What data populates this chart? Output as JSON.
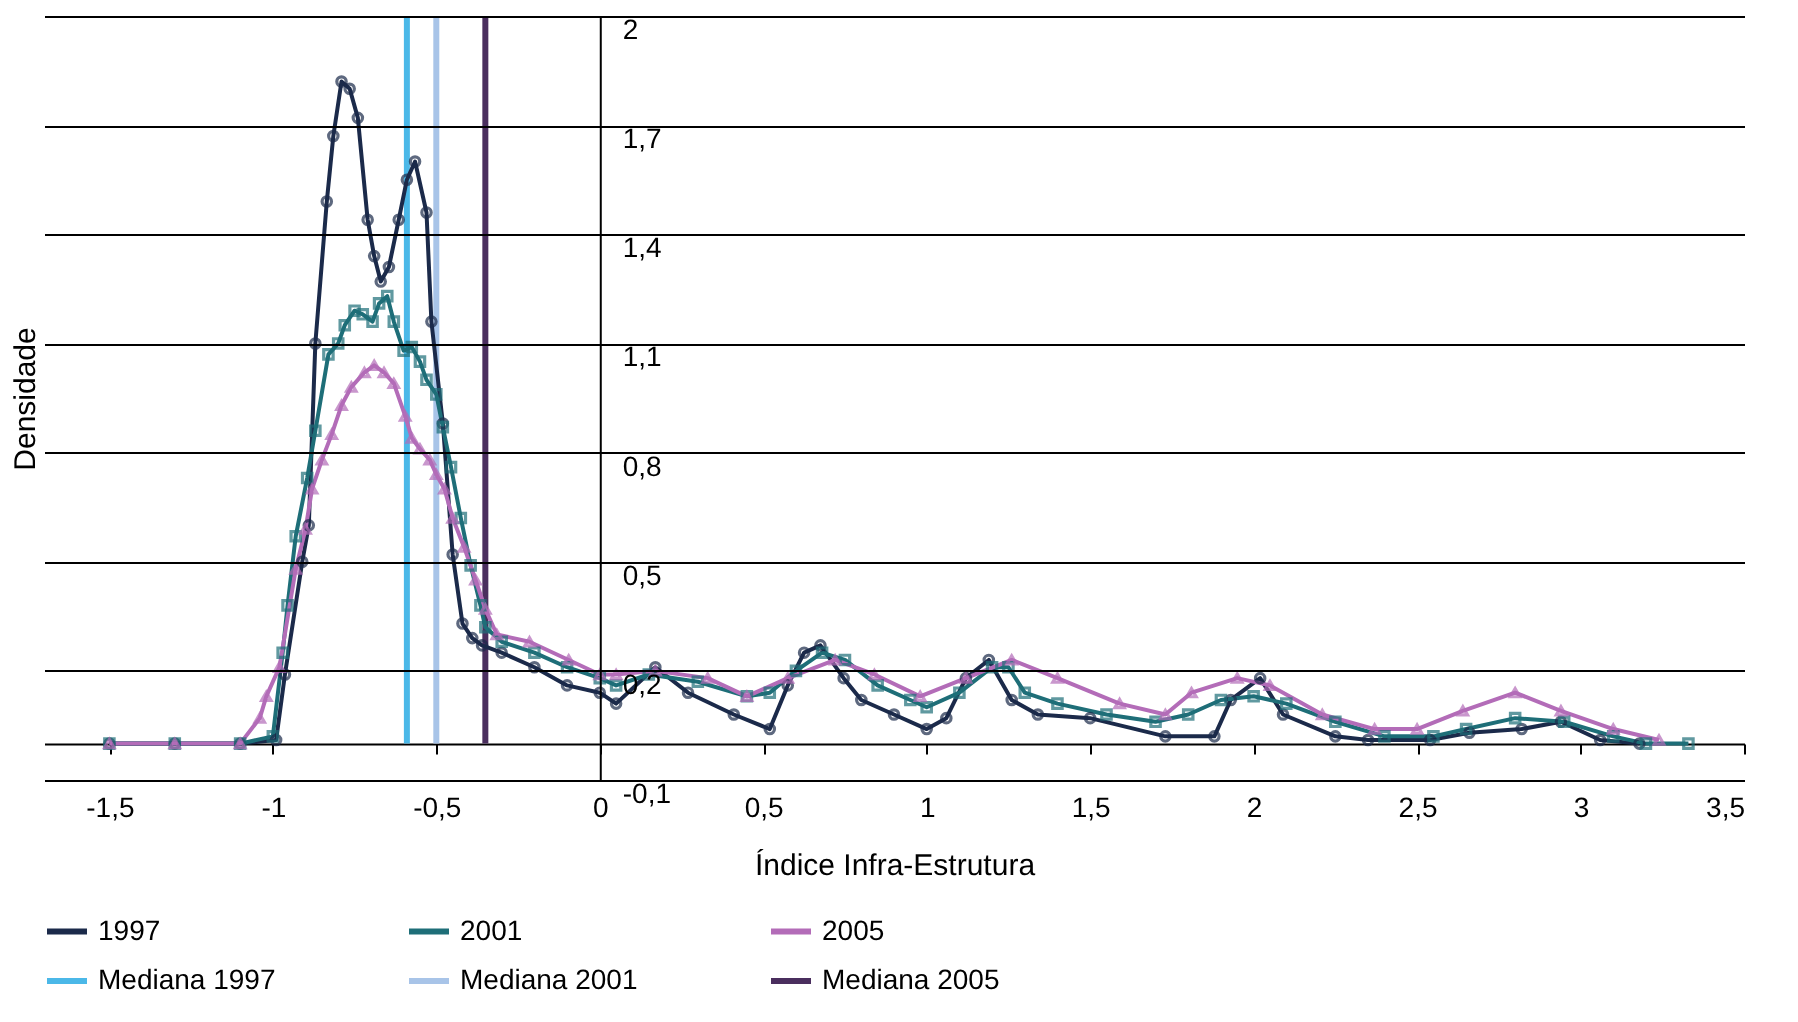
{
  "chart_data": {
    "type": "line",
    "xlabel": "Índice Infra-Estrutura",
    "ylabel": "Densidade",
    "xlim": [
      -1.7,
      3.5
    ],
    "xticks": [
      {
        "value": -1.5,
        "label": "-1,5"
      },
      -1,
      {
        "value": -0.5,
        "label": "-0,5"
      },
      0,
      {
        "value": 0.5,
        "label": "0,5"
      },
      1,
      {
        "value": 1.5,
        "label": "1,5"
      },
      2,
      {
        "value": 2.5,
        "label": "2,5"
      },
      3,
      {
        "value": 3.5,
        "label": "3,5"
      }
    ],
    "ylim": [
      -0.1,
      2
    ],
    "yticks": [
      {
        "value": -0.1,
        "label": "-0,1"
      },
      {
        "value": 0.2,
        "label": "0,2"
      },
      {
        "value": 0.5,
        "label": "0,5"
      },
      {
        "value": 0.8,
        "label": "0,8"
      },
      {
        "value": 1.1,
        "label": "1,1"
      },
      {
        "value": 1.4,
        "label": "1,4"
      },
      {
        "value": 1.7,
        "label": "1,7"
      },
      2
    ],
    "grid": "y",
    "legend": "bottom",
    "line_style": "solid",
    "series": [
      {
        "name": "1997",
        "color": "#1b2a4a",
        "marker": "circle",
        "x": [
          -1.5,
          -1.3,
          -1.1,
          -0.99,
          -0.963,
          -0.91,
          -0.89,
          -0.87,
          -0.835,
          -0.815,
          -0.79,
          -0.765,
          -0.74,
          -0.71,
          -0.69,
          -0.67,
          -0.645,
          -0.615,
          -0.59,
          -0.565,
          -0.53,
          -0.515,
          -0.48,
          -0.45,
          -0.42,
          -0.39,
          -0.36,
          -0.3,
          -0.2,
          -0.1,
          0,
          0.05,
          0.17,
          0.27,
          0.41,
          0.52,
          0.575,
          0.625,
          0.675,
          0.746,
          0.8,
          0.9,
          1.0,
          1.06,
          1.12,
          1.19,
          1.26,
          1.34,
          1.5,
          1.73,
          1.88,
          1.93,
          2.02,
          2.09,
          2.25,
          2.35,
          2.54,
          2.66,
          2.82,
          2.94,
          3.06,
          3.18
        ],
        "values": [
          0,
          0,
          0,
          0.01,
          0.19,
          0.5,
          0.6,
          1.1,
          1.49,
          1.67,
          1.82,
          1.8,
          1.72,
          1.44,
          1.34,
          1.27,
          1.31,
          1.44,
          1.55,
          1.6,
          1.46,
          1.16,
          0.88,
          0.52,
          0.33,
          0.29,
          0.27,
          0.25,
          0.21,
          0.16,
          0.14,
          0.11,
          0.21,
          0.14,
          0.08,
          0.04,
          0.16,
          0.25,
          0.27,
          0.18,
          0.12,
          0.08,
          0.04,
          0.07,
          0.18,
          0.23,
          0.12,
          0.08,
          0.07,
          0.02,
          0.02,
          0.12,
          0.18,
          0.08,
          0.02,
          0.01,
          0.01,
          0.03,
          0.04,
          0.06,
          0.01,
          0
        ]
      },
      {
        "name": "2001",
        "color": "#1e6e78",
        "marker": "square",
        "x": [
          -1.5,
          -1.3,
          -1.1,
          -1.0,
          -0.97,
          -0.955,
          -0.93,
          -0.895,
          -0.87,
          -0.83,
          -0.8,
          -0.78,
          -0.75,
          -0.725,
          -0.695,
          -0.675,
          -0.65,
          -0.63,
          -0.6,
          -0.575,
          -0.55,
          -0.53,
          -0.5,
          -0.48,
          -0.455,
          -0.425,
          -0.395,
          -0.365,
          -0.35,
          -0.3,
          -0.2,
          -0.1,
          0,
          0.05,
          0.15,
          0.3,
          0.45,
          0.52,
          0.6,
          0.68,
          0.75,
          0.85,
          0.95,
          1.0,
          1.1,
          1.2,
          1.25,
          1.3,
          1.4,
          1.55,
          1.7,
          1.8,
          1.9,
          2.0,
          2.1,
          2.25,
          2.4,
          2.55,
          2.65,
          2.8,
          2.95,
          3.1,
          3.2,
          3.33
        ],
        "values": [
          0,
          0,
          0,
          0.02,
          0.25,
          0.38,
          0.57,
          0.73,
          0.86,
          1.07,
          1.1,
          1.15,
          1.19,
          1.18,
          1.16,
          1.21,
          1.23,
          1.16,
          1.08,
          1.09,
          1.05,
          1.0,
          0.96,
          0.87,
          0.76,
          0.62,
          0.49,
          0.38,
          0.32,
          0.28,
          0.25,
          0.21,
          0.18,
          0.16,
          0.19,
          0.17,
          0.13,
          0.14,
          0.2,
          0.25,
          0.23,
          0.16,
          0.12,
          0.1,
          0.14,
          0.21,
          0.21,
          0.14,
          0.11,
          0.08,
          0.06,
          0.08,
          0.12,
          0.13,
          0.11,
          0.06,
          0.02,
          0.02,
          0.04,
          0.07,
          0.06,
          0.02,
          0,
          0
        ]
      },
      {
        "name": "2005",
        "color": "#b36cb8",
        "marker": "triangle",
        "x": [
          -1.5,
          -1.3,
          -1.1,
          -1.04,
          -1.02,
          -0.98,
          -0.93,
          -0.9,
          -0.88,
          -0.85,
          -0.82,
          -0.79,
          -0.76,
          -0.72,
          -0.69,
          -0.66,
          -0.63,
          -0.595,
          -0.575,
          -0.55,
          -0.52,
          -0.5,
          -0.475,
          -0.45,
          -0.415,
          -0.38,
          -0.35,
          -0.315,
          -0.215,
          -0.095,
          0,
          0.05,
          0.17,
          0.33,
          0.45,
          0.575,
          0.72,
          0.84,
          0.98,
          1.12,
          1.26,
          1.4,
          1.59,
          1.73,
          1.81,
          1.95,
          2.05,
          2.21,
          2.37,
          2.5,
          2.64,
          2.8,
          2.94,
          3.1,
          3.24
        ],
        "values": [
          0,
          0,
          0,
          0.07,
          0.13,
          0.21,
          0.48,
          0.59,
          0.7,
          0.78,
          0.85,
          0.93,
          0.98,
          1.02,
          1.04,
          1.02,
          0.99,
          0.9,
          0.84,
          0.81,
          0.78,
          0.74,
          0.7,
          0.62,
          0.54,
          0.45,
          0.37,
          0.3,
          0.28,
          0.23,
          0.19,
          0.19,
          0.2,
          0.18,
          0.13,
          0.18,
          0.23,
          0.19,
          0.13,
          0.18,
          0.23,
          0.18,
          0.11,
          0.08,
          0.14,
          0.18,
          0.16,
          0.08,
          0.04,
          0.04,
          0.09,
          0.14,
          0.09,
          0.04,
          0.01
        ]
      }
    ],
    "ref_lines": [
      {
        "axis": "x",
        "value": -0.59,
        "label": "Mediana 1997",
        "color": "#4bb8e8"
      },
      {
        "axis": "x",
        "value": -0.5,
        "label": "Mediana 2001",
        "color": "#a8c4e8"
      },
      {
        "axis": "x",
        "value": -0.35,
        "label": "Mediana 2005",
        "color": "#4a2e5e"
      }
    ]
  }
}
